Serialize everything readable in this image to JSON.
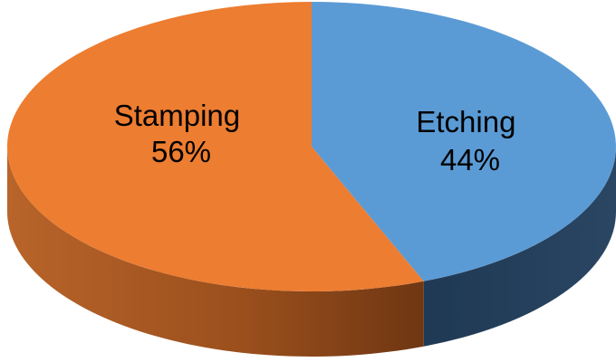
{
  "chart_data": {
    "type": "pie",
    "style": "3d",
    "title": "",
    "legend": "none",
    "slices": [
      {
        "label": "Etching",
        "value": 44,
        "value_label": "44%",
        "color": "#5b9bd5"
      },
      {
        "label": "Stamping",
        "value": 56,
        "value_label": "56%",
        "color": "#ed7d31"
      }
    ]
  }
}
